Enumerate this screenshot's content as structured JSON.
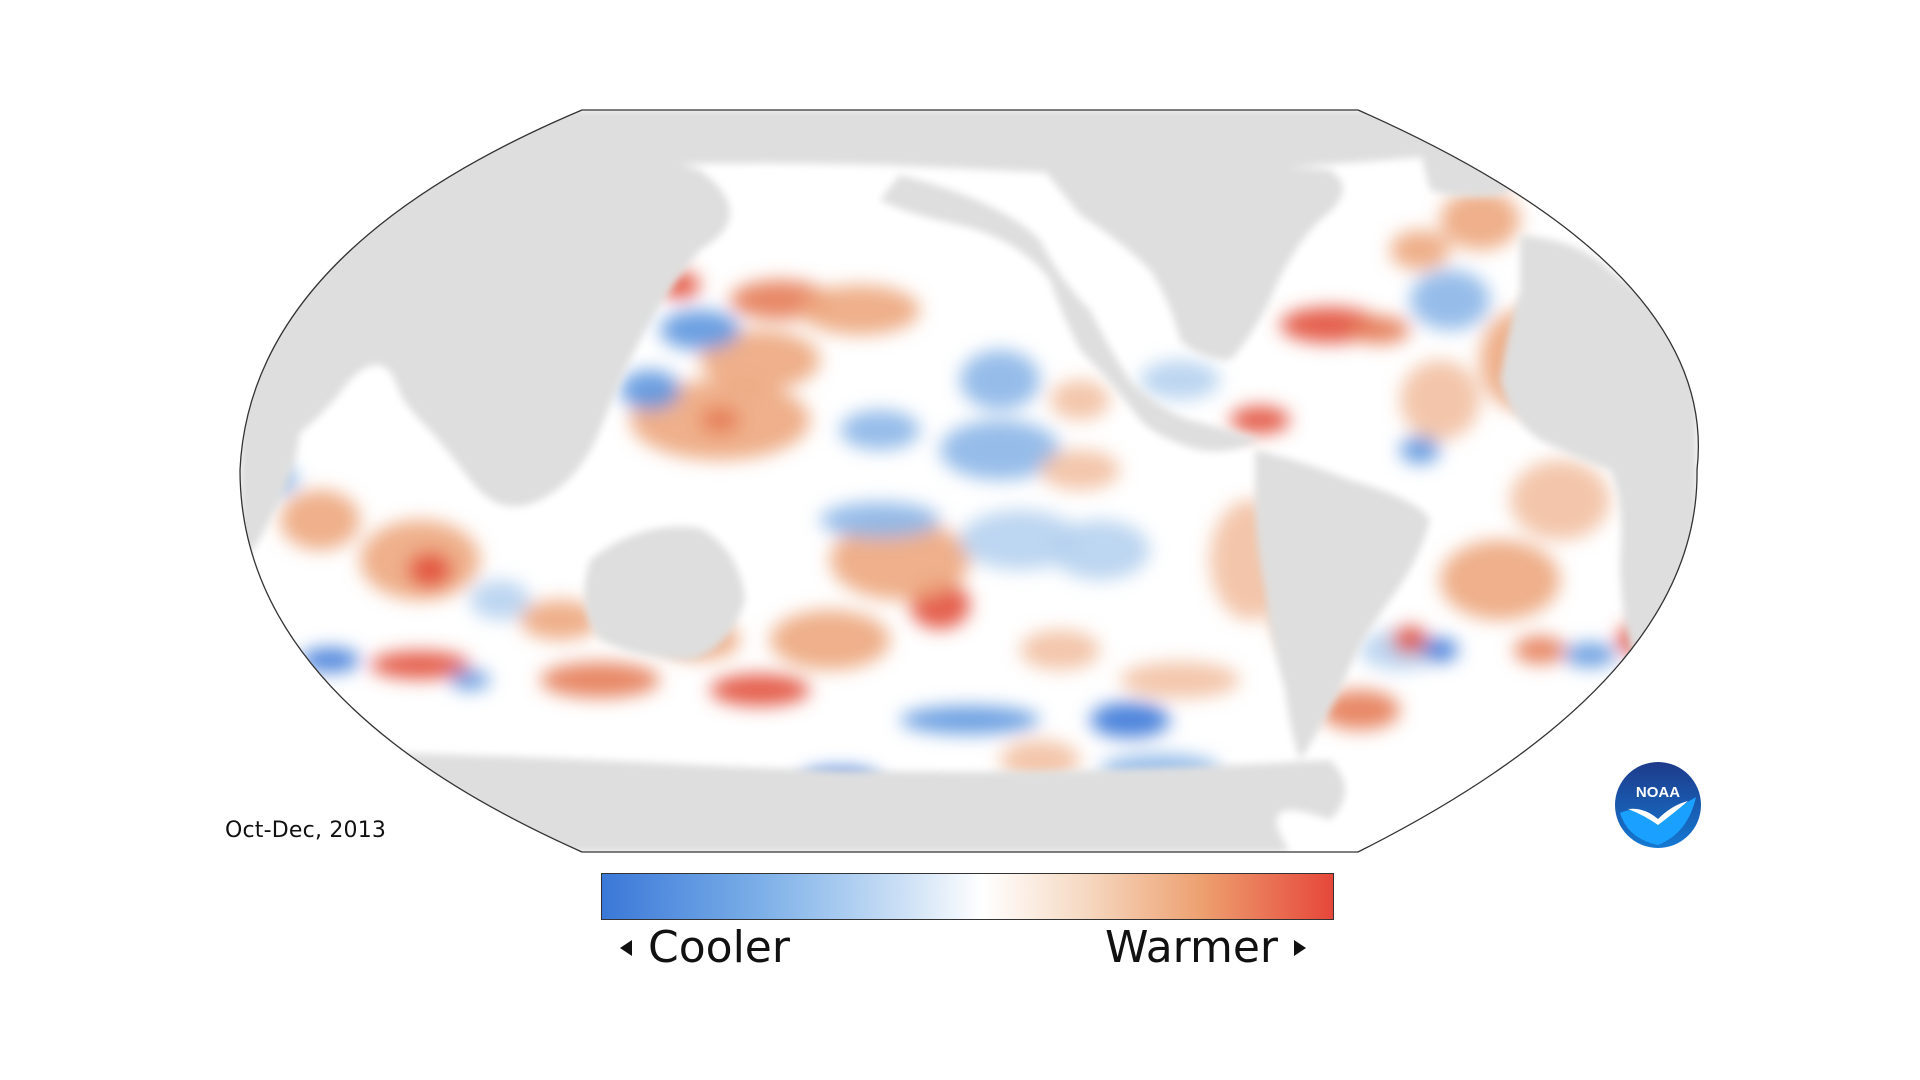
{
  "period_label": "Oct-Dec, 2013",
  "legend": {
    "low_label": "Cooler",
    "high_label": "Warmer",
    "colors": {
      "cool_end": "#3a78d8",
      "neutral": "#ffffff",
      "warm_end": "#e6473a"
    }
  },
  "logo": {
    "icon": "noaa-logo-icon",
    "text": "NOAA"
  },
  "map": {
    "projection": "Robinson (Pacific-centered)",
    "land_color": "#dedede",
    "ocean_base_color": "#ffffff"
  }
}
